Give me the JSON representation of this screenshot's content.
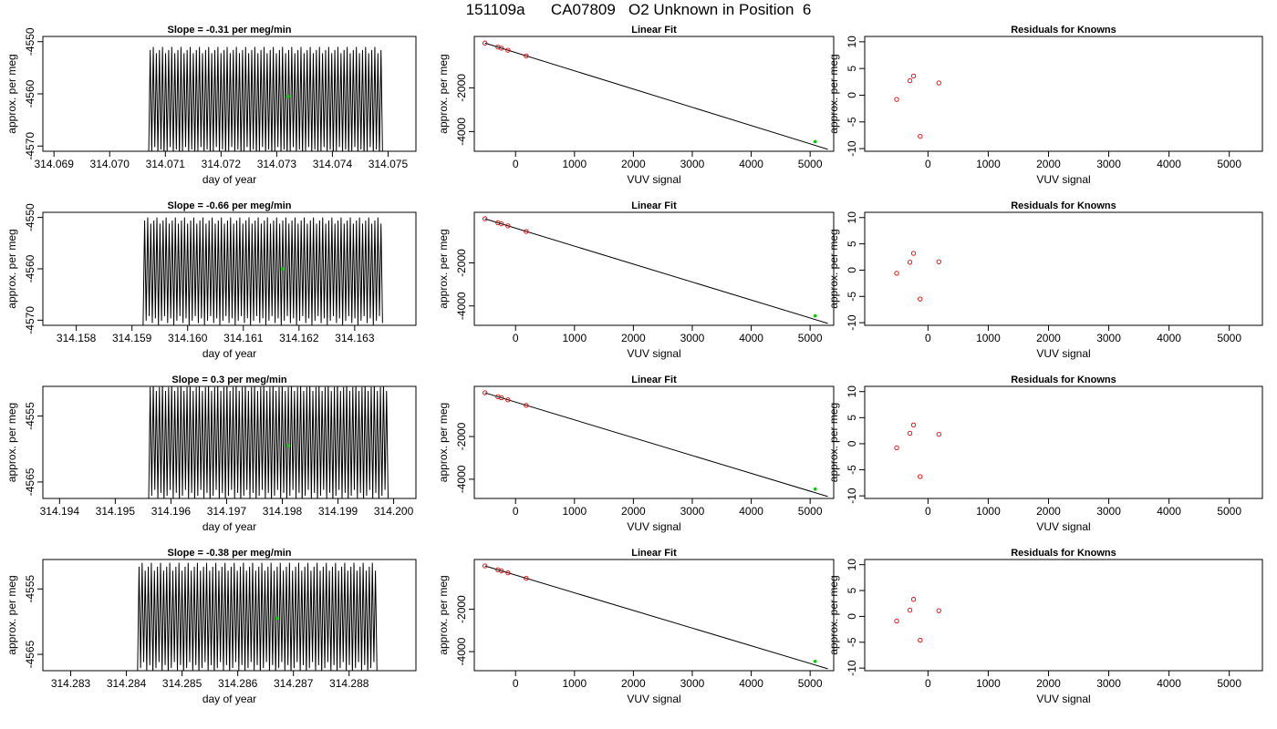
{
  "figure": {
    "title": "151109a      CA07809   O2 Unknown in Position  6"
  },
  "colors": {
    "trace": "#000000",
    "unknown_point": "#00cc00",
    "known_point": "#e00000",
    "axes": "#000000"
  },
  "chart_data": [
    {
      "type": "line",
      "panel": "time-series",
      "title": "Slope =  -0.31  per meg/min",
      "xlabel": "day of year",
      "ylabel": "approx. per meg",
      "xlim": [
        314.0688,
        314.0755
      ],
      "ylim": [
        4571,
        4549
      ],
      "xticks": [
        {
          "v": 314.069,
          "t": "314.069"
        },
        {
          "v": 314.07,
          "t": "314.070"
        },
        {
          "v": 314.071,
          "t": "314.071"
        },
        {
          "v": 314.072,
          "t": "314.072"
        },
        {
          "v": 314.073,
          "t": "314.073"
        },
        {
          "v": 314.074,
          "t": "314.074"
        },
        {
          "v": 314.075,
          "t": "314.075"
        }
      ],
      "yticks": [
        {
          "v": 4550,
          "t": "-4550"
        },
        {
          "v": 4560,
          "t": "-4560"
        },
        {
          "v": 4570,
          "t": "-4570"
        }
      ],
      "trace": {
        "x_start": 314.0707,
        "x_end": 314.0749,
        "y_low": 4551,
        "y_high": 4572,
        "cycles": 76
      },
      "unknown_point": {
        "x": 314.0732,
        "y": 4560.5
      }
    },
    {
      "type": "scatter",
      "panel": "linear-fit",
      "title": "Linear Fit",
      "xlabel": "VUV signal",
      "ylabel": "approx. per meg",
      "xlim": [
        -700,
        5400
      ],
      "ylim": [
        -4900,
        350
      ],
      "xticks": [
        {
          "v": 0,
          "t": "0"
        },
        {
          "v": 1000,
          "t": "1000"
        },
        {
          "v": 2000,
          "t": "2000"
        },
        {
          "v": 3000,
          "t": "3000"
        },
        {
          "v": 4000,
          "t": "4000"
        },
        {
          "v": 5000,
          "t": "5000"
        }
      ],
      "yticks": [
        {
          "v": -2000,
          "t": "-2000"
        },
        {
          "v": -4000,
          "t": "-4000"
        }
      ],
      "fit_line": {
        "x": [
          -520,
          5300
        ],
        "y": [
          49,
          -4810
        ]
      },
      "knowns": {
        "x": [
          -520,
          -300,
          -240,
          -130,
          180
        ],
        "y": [
          50,
          -135,
          -185,
          -280,
          -540
        ]
      },
      "unknown": {
        "x": 5085,
        "y": -4460
      }
    },
    {
      "type": "scatter",
      "panel": "residuals",
      "title": "Residuals for Knowns",
      "xlabel": "VUV signal",
      "ylabel": "approx. per meg",
      "xlim": [
        -1050,
        5550
      ],
      "ylim": [
        -10.5,
        11
      ],
      "xticks": [
        {
          "v": 0,
          "t": "0"
        },
        {
          "v": 1000,
          "t": "1000"
        },
        {
          "v": 2000,
          "t": "2000"
        },
        {
          "v": 3000,
          "t": "3000"
        },
        {
          "v": 4000,
          "t": "4000"
        },
        {
          "v": 5000,
          "t": "5000"
        }
      ],
      "yticks": [
        {
          "v": 10,
          "t": "10"
        },
        {
          "v": 5,
          "t": "5"
        },
        {
          "v": 0,
          "t": "0"
        },
        {
          "v": -5,
          "t": "-5"
        },
        {
          "v": -10,
          "t": "-10"
        }
      ],
      "points": {
        "x": [
          -520,
          -300,
          -240,
          -130,
          180
        ],
        "y": [
          -0.8,
          2.7,
          3.6,
          -7.7,
          2.3
        ]
      }
    },
    {
      "type": "line",
      "panel": "time-series",
      "title": "Slope =  -0.66  per meg/min",
      "xlabel": "day of year",
      "ylabel": "approx. per meg",
      "xlim": [
        314.1574,
        314.1641
      ],
      "ylim": [
        4571,
        4549
      ],
      "xticks": [
        {
          "v": 314.158,
          "t": "314.158"
        },
        {
          "v": 314.159,
          "t": "314.159"
        },
        {
          "v": 314.16,
          "t": "314.160"
        },
        {
          "v": 314.161,
          "t": "314.161"
        },
        {
          "v": 314.162,
          "t": "314.162"
        },
        {
          "v": 314.163,
          "t": "314.163"
        }
      ],
      "yticks": [
        {
          "v": 4550,
          "t": "-4550"
        },
        {
          "v": 4560,
          "t": "-4560"
        },
        {
          "v": 4570,
          "t": "-4570"
        }
      ],
      "trace": {
        "x_start": 314.1592,
        "x_end": 314.1635,
        "y_low": 4550,
        "y_high": 4571,
        "cycles": 78
      },
      "unknown_point": {
        "x": 314.1617,
        "y": 4560
      }
    },
    {
      "type": "scatter",
      "panel": "linear-fit",
      "title": "Linear Fit",
      "xlabel": "VUV signal",
      "ylabel": "approx. per meg",
      "xlim": [
        -700,
        5400
      ],
      "ylim": [
        -4900,
        350
      ],
      "xticks": [
        {
          "v": 0,
          "t": "0"
        },
        {
          "v": 1000,
          "t": "1000"
        },
        {
          "v": 2000,
          "t": "2000"
        },
        {
          "v": 3000,
          "t": "3000"
        },
        {
          "v": 4000,
          "t": "4000"
        },
        {
          "v": 5000,
          "t": "5000"
        }
      ],
      "yticks": [
        {
          "v": -2000,
          "t": "-2000"
        },
        {
          "v": -4000,
          "t": "-4000"
        }
      ],
      "fit_line": {
        "x": [
          -520,
          5300
        ],
        "y": [
          49,
          -4810
        ]
      },
      "knowns": {
        "x": [
          -520,
          -300,
          -240,
          -130,
          180
        ],
        "y": [
          50,
          -135,
          -185,
          -280,
          -540
        ]
      },
      "unknown": {
        "x": 5085,
        "y": -4460
      }
    },
    {
      "type": "scatter",
      "panel": "residuals",
      "title": "Residuals for Knowns",
      "xlabel": "VUV signal",
      "ylabel": "approx. per meg",
      "xlim": [
        -1050,
        5550
      ],
      "ylim": [
        -10.5,
        11
      ],
      "xticks": [
        {
          "v": 0,
          "t": "0"
        },
        {
          "v": 1000,
          "t": "1000"
        },
        {
          "v": 2000,
          "t": "2000"
        },
        {
          "v": 3000,
          "t": "3000"
        },
        {
          "v": 4000,
          "t": "4000"
        },
        {
          "v": 5000,
          "t": "5000"
        }
      ],
      "yticks": [
        {
          "v": 10,
          "t": "10"
        },
        {
          "v": 5,
          "t": "5"
        },
        {
          "v": 0,
          "t": "0"
        },
        {
          "v": -5,
          "t": "-5"
        },
        {
          "v": -10,
          "t": "-10"
        }
      ],
      "points": {
        "x": [
          -520,
          -300,
          -240,
          -130,
          180
        ],
        "y": [
          -0.6,
          1.5,
          3.2,
          -5.5,
          1.6
        ]
      }
    },
    {
      "type": "line",
      "panel": "time-series",
      "title": "Slope =  0.3  per meg/min",
      "xlabel": "day of year",
      "ylabel": "approx. per meg",
      "xlim": [
        314.1937,
        314.2004
      ],
      "ylim": [
        4567.5,
        4550.5
      ],
      "xticks": [
        {
          "v": 314.194,
          "t": "314.194"
        },
        {
          "v": 314.195,
          "t": "314.195"
        },
        {
          "v": 314.196,
          "t": "314.196"
        },
        {
          "v": 314.197,
          "t": "314.197"
        },
        {
          "v": 314.198,
          "t": "314.198"
        },
        {
          "v": 314.199,
          "t": "314.199"
        },
        {
          "v": 314.2,
          "t": "314.200"
        }
      ],
      "yticks": [
        {
          "v": 4555,
          "t": "-4555"
        },
        {
          "v": 4565,
          "t": "-4565"
        }
      ],
      "trace": {
        "x_start": 314.1956,
        "x_end": 314.1999,
        "y_low": 4550,
        "y_high": 4568,
        "cycles": 78
      },
      "unknown_point": {
        "x": 314.1981,
        "y": 4559.5
      }
    },
    {
      "type": "scatter",
      "panel": "linear-fit",
      "title": "Linear Fit",
      "xlabel": "VUV signal",
      "ylabel": "approx. per meg",
      "xlim": [
        -700,
        5400
      ],
      "ylim": [
        -4900,
        350
      ],
      "xticks": [
        {
          "v": 0,
          "t": "0"
        },
        {
          "v": 1000,
          "t": "1000"
        },
        {
          "v": 2000,
          "t": "2000"
        },
        {
          "v": 3000,
          "t": "3000"
        },
        {
          "v": 4000,
          "t": "4000"
        },
        {
          "v": 5000,
          "t": "5000"
        }
      ],
      "yticks": [
        {
          "v": -2000,
          "t": "-2000"
        },
        {
          "v": -4000,
          "t": "-4000"
        }
      ],
      "fit_line": {
        "x": [
          -520,
          5300
        ],
        "y": [
          49,
          -4810
        ]
      },
      "knowns": {
        "x": [
          -520,
          -300,
          -240,
          -130,
          180
        ],
        "y": [
          50,
          -135,
          -185,
          -280,
          -540
        ]
      },
      "unknown": {
        "x": 5085,
        "y": -4460
      }
    },
    {
      "type": "scatter",
      "panel": "residuals",
      "title": "Residuals for Knowns",
      "xlabel": "VUV signal",
      "ylabel": "approx. per meg",
      "xlim": [
        -1050,
        5550
      ],
      "ylim": [
        -10.5,
        11
      ],
      "xticks": [
        {
          "v": 0,
          "t": "0"
        },
        {
          "v": 1000,
          "t": "1000"
        },
        {
          "v": 2000,
          "t": "2000"
        },
        {
          "v": 3000,
          "t": "3000"
        },
        {
          "v": 4000,
          "t": "4000"
        },
        {
          "v": 5000,
          "t": "5000"
        }
      ],
      "yticks": [
        {
          "v": 10,
          "t": "10"
        },
        {
          "v": 5,
          "t": "5"
        },
        {
          "v": 0,
          "t": "0"
        },
        {
          "v": -5,
          "t": "-5"
        },
        {
          "v": -10,
          "t": "-10"
        }
      ],
      "points": {
        "x": [
          -520,
          -300,
          -240,
          -130,
          180
        ],
        "y": [
          -0.8,
          2.0,
          3.6,
          -6.3,
          1.8
        ]
      }
    },
    {
      "type": "line",
      "panel": "time-series",
      "title": "Slope =  -0.38  per meg/min",
      "xlabel": "day of year",
      "ylabel": "approx. per meg",
      "xlim": [
        314.2825,
        314.2892
      ],
      "ylim": [
        4567.5,
        4550.5
      ],
      "xticks": [
        {
          "v": 314.283,
          "t": "314.283"
        },
        {
          "v": 314.284,
          "t": "314.284"
        },
        {
          "v": 314.285,
          "t": "314.285"
        },
        {
          "v": 314.286,
          "t": "314.286"
        },
        {
          "v": 314.287,
          "t": "314.287"
        },
        {
          "v": 314.288,
          "t": "314.288"
        }
      ],
      "yticks": [
        {
          "v": 4555,
          "t": "-4555"
        },
        {
          "v": 4565,
          "t": "-4565"
        }
      ],
      "trace": {
        "x_start": 314.2842,
        "x_end": 314.2885,
        "y_low": 4551,
        "y_high": 4568,
        "cycles": 78
      },
      "unknown_point": {
        "x": 314.2867,
        "y": 4559.5
      }
    },
    {
      "type": "scatter",
      "panel": "linear-fit",
      "title": "Linear Fit",
      "xlabel": "VUV signal",
      "ylabel": "approx. per meg",
      "xlim": [
        -700,
        5400
      ],
      "ylim": [
        -4900,
        350
      ],
      "xticks": [
        {
          "v": 0,
          "t": "0"
        },
        {
          "v": 1000,
          "t": "1000"
        },
        {
          "v": 2000,
          "t": "2000"
        },
        {
          "v": 3000,
          "t": "3000"
        },
        {
          "v": 4000,
          "t": "4000"
        },
        {
          "v": 5000,
          "t": "5000"
        }
      ],
      "yticks": [
        {
          "v": -2000,
          "t": "-2000"
        },
        {
          "v": -4000,
          "t": "-4000"
        }
      ],
      "fit_line": {
        "x": [
          -520,
          5300
        ],
        "y": [
          49,
          -4810
        ]
      },
      "knowns": {
        "x": [
          -520,
          -300,
          -240,
          -130,
          180
        ],
        "y": [
          50,
          -135,
          -185,
          -280,
          -540
        ]
      },
      "unknown": {
        "x": 5085,
        "y": -4460
      }
    },
    {
      "type": "scatter",
      "panel": "residuals",
      "title": "Residuals for Knowns",
      "xlabel": "VUV signal",
      "ylabel": "approx. per meg",
      "xlim": [
        -1050,
        5550
      ],
      "ylim": [
        -10.5,
        11
      ],
      "xticks": [
        {
          "v": 0,
          "t": "0"
        },
        {
          "v": 1000,
          "t": "1000"
        },
        {
          "v": 2000,
          "t": "2000"
        },
        {
          "v": 3000,
          "t": "3000"
        },
        {
          "v": 4000,
          "t": "4000"
        },
        {
          "v": 5000,
          "t": "5000"
        }
      ],
      "yticks": [
        {
          "v": 10,
          "t": "10"
        },
        {
          "v": 5,
          "t": "5"
        },
        {
          "v": 0,
          "t": "0"
        },
        {
          "v": -5,
          "t": "-5"
        },
        {
          "v": -10,
          "t": "-10"
        }
      ],
      "points": {
        "x": [
          -520,
          -300,
          -240,
          -130,
          180
        ],
        "y": [
          -0.9,
          1.2,
          3.3,
          -4.6,
          1.1
        ]
      }
    }
  ]
}
